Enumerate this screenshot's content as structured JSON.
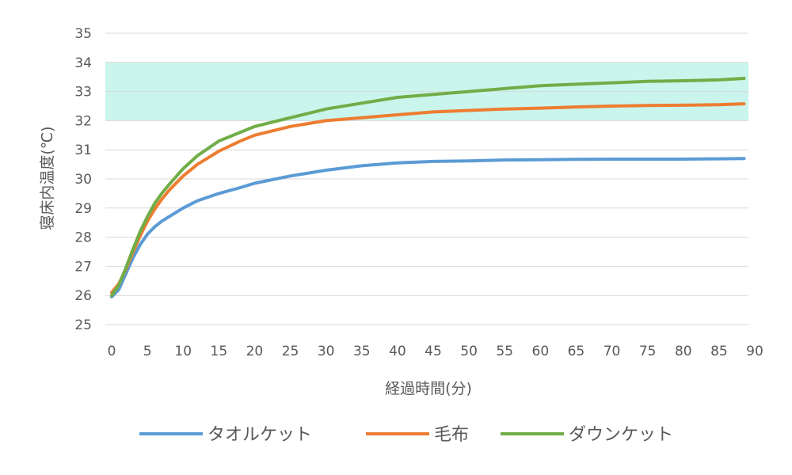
{
  "chart_data": {
    "type": "line",
    "title": "",
    "xlabel": "経過時間(分)",
    "ylabel": "寝床内温度(℃)",
    "xlim": [
      0,
      90
    ],
    "ylim": [
      25,
      35
    ],
    "xticks": [
      "0",
      "5",
      "10",
      "15",
      "20",
      "25",
      "30",
      "35",
      "40",
      "45",
      "50",
      "55",
      "60",
      "65",
      "70",
      "75",
      "80",
      "85",
      "90"
    ],
    "yticks": [
      "25",
      "26",
      "27",
      "28",
      "29",
      "30",
      "31",
      "32",
      "33",
      "34",
      "35"
    ],
    "grid": "horizontal",
    "legend": "bottom",
    "comfort_band": {
      "y_from": 32,
      "y_to": 34,
      "color": "#c9f5ec"
    },
    "x": [
      0,
      1,
      2,
      3,
      4,
      5,
      6,
      7,
      8,
      10,
      12,
      15,
      18,
      20,
      25,
      30,
      35,
      40,
      45,
      50,
      55,
      60,
      65,
      70,
      75,
      80,
      85,
      88.5
    ],
    "series": [
      {
        "name": "タオルケット",
        "color": "#5b9bd5",
        "values": [
          25.95,
          26.2,
          26.75,
          27.3,
          27.75,
          28.1,
          28.35,
          28.55,
          28.7,
          29.0,
          29.25,
          29.5,
          29.7,
          29.85,
          30.1,
          30.3,
          30.45,
          30.55,
          30.6,
          30.62,
          30.65,
          30.66,
          30.67,
          30.68,
          30.68,
          30.68,
          30.69,
          30.7
        ]
      },
      {
        "name": "毛布",
        "color": "#ed7d31",
        "values": [
          26.1,
          26.4,
          26.9,
          27.5,
          28.05,
          28.55,
          28.95,
          29.3,
          29.6,
          30.1,
          30.5,
          30.95,
          31.3,
          31.5,
          31.8,
          32.0,
          32.1,
          32.2,
          32.3,
          32.35,
          32.4,
          32.43,
          32.47,
          32.5,
          32.52,
          32.53,
          32.55,
          32.58
        ]
      },
      {
        "name": "ダウンケット",
        "color": "#70ad47",
        "values": [
          26.0,
          26.35,
          26.95,
          27.6,
          28.2,
          28.7,
          29.15,
          29.5,
          29.8,
          30.35,
          30.8,
          31.3,
          31.6,
          31.8,
          32.1,
          32.4,
          32.6,
          32.8,
          32.9,
          33.0,
          33.1,
          33.2,
          33.25,
          33.3,
          33.35,
          33.37,
          33.4,
          33.45
        ]
      }
    ]
  }
}
